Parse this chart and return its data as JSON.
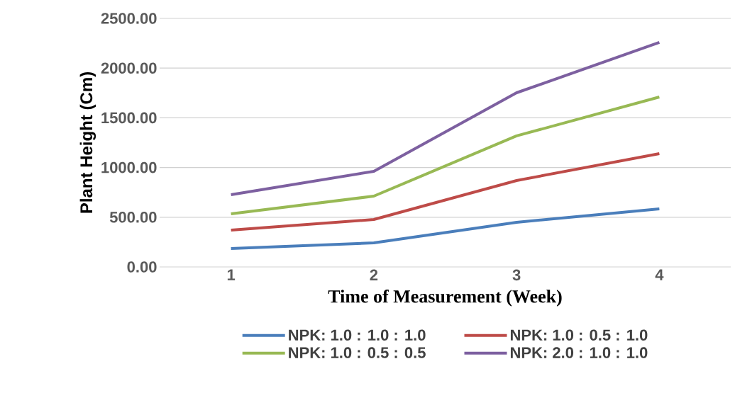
{
  "chart_data": {
    "type": "line",
    "xlabel": "Time of Measurement (Week)",
    "ylabel": "Plant Height (Cm)",
    "categories": [
      "1",
      "2",
      "3",
      "4"
    ],
    "series": [
      {
        "name": "NPK: 1.0 : 1.0 : 1.0",
        "color": "#4a7ebb",
        "values": [
          185,
          242,
          449,
          584
        ]
      },
      {
        "name": "NPK: 1.0 : 0.5 : 1.0",
        "color": "#be4b48",
        "values": [
          370,
          477,
          869,
          1140
        ]
      },
      {
        "name": "NPK: 1.0 : 0.5 : 0.5",
        "color": "#98b954",
        "values": [
          534,
          712,
          1318,
          1709
        ]
      },
      {
        "name": "NPK: 2.0 : 1.0 : 1.0",
        "color": "#7d60a0",
        "values": [
          726,
          962,
          1752,
          2258
        ]
      }
    ],
    "ylim": [
      0,
      2500
    ],
    "yticks": [
      {
        "value": 0,
        "label": "0.00"
      },
      {
        "value": 500,
        "label": "500.00"
      },
      {
        "value": 1000,
        "label": "1000.00"
      },
      {
        "value": 1500,
        "label": "1500.00"
      },
      {
        "value": 2000,
        "label": "2000.00"
      },
      {
        "value": 2500,
        "label": "2500.00"
      }
    ],
    "grid": "y",
    "legend": "bottom",
    "marker": "none",
    "line_style": "solid"
  }
}
